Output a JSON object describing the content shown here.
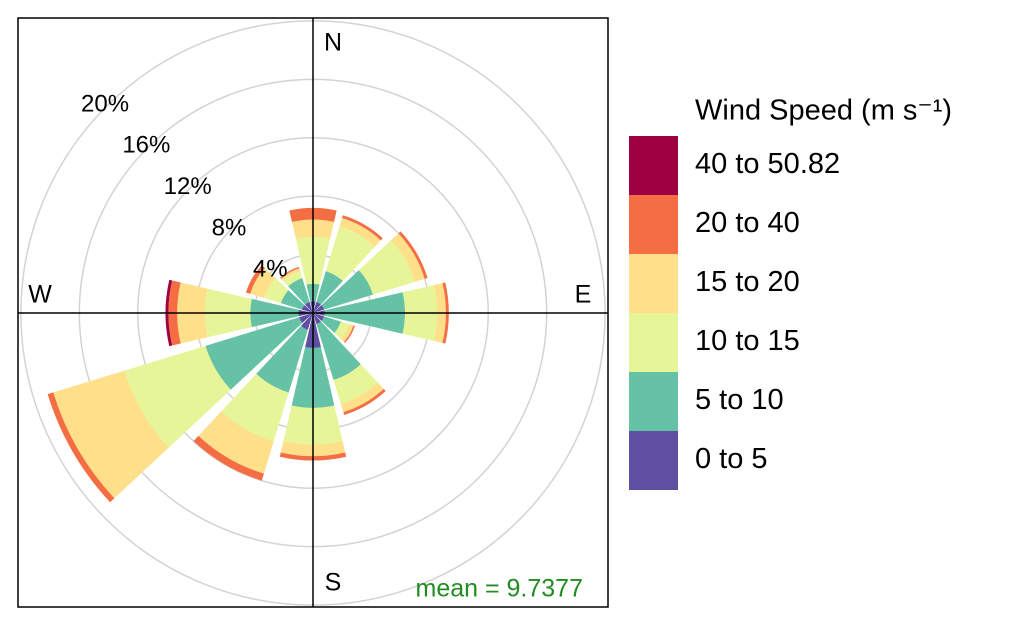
{
  "chart_data": {
    "type": "windrose",
    "x": [
      0,
      30,
      60,
      90,
      120,
      150,
      180,
      210,
      240,
      270,
      300,
      330
    ],
    "rlim": [
      0,
      20.2
    ],
    "rticks": [
      {
        "value": 4,
        "label": "4%"
      },
      {
        "value": 8,
        "label": "8%"
      },
      {
        "value": 12,
        "label": "12%"
      },
      {
        "value": 16,
        "label": "16%"
      },
      {
        "value": 20,
        "label": "20%"
      }
    ],
    "compass_labels": [
      "N",
      "E",
      "S",
      "W"
    ],
    "legend_title": "Wind Speed (m s⁻¹)",
    "annotation": "mean = 9.7377",
    "grid": true,
    "series": [
      {
        "name": "0 to 5",
        "color": "#5e4fa2",
        "values": [
          0.8,
          0.8,
          0.8,
          0.8,
          0.8,
          0.8,
          2.4,
          1.2,
          1.0,
          1.0,
          0.8,
          0.8
        ]
      },
      {
        "name": "5 to 10",
        "color": "#66c2a5",
        "values": [
          1.2,
          2.2,
          3.5,
          5.5,
          1.2,
          4.0,
          4.1,
          4.5,
          6.7,
          3.3,
          1.5,
          1.7
        ]
      },
      {
        "name": "10 to 15",
        "color": "#e6f598",
        "values": [
          3.2,
          3.2,
          3.0,
          2.2,
          0.6,
          1.7,
          2.5,
          3.5,
          5.8,
          3.1,
          1.2,
          0.5
        ]
      },
      {
        "name": "15 to 20",
        "color": "#fee08b",
        "values": [
          1.2,
          0.6,
          0.7,
          0.6,
          0.3,
          0.6,
          0.8,
          2.3,
          5.1,
          1.9,
          1.0,
          0.2
        ]
      },
      {
        "name": "20 to 40",
        "color": "#f46d43",
        "values": [
          0.8,
          0.2,
          0.2,
          0.2,
          0.1,
          0.2,
          0.3,
          0.5,
          0.4,
          0.6,
          0.3,
          0.1
        ]
      },
      {
        "name": "40 to 50.82",
        "color": "#9e0142",
        "values": [
          0,
          0,
          0,
          0,
          0,
          0,
          0,
          0,
          0,
          0.2,
          0,
          0
        ]
      }
    ]
  }
}
